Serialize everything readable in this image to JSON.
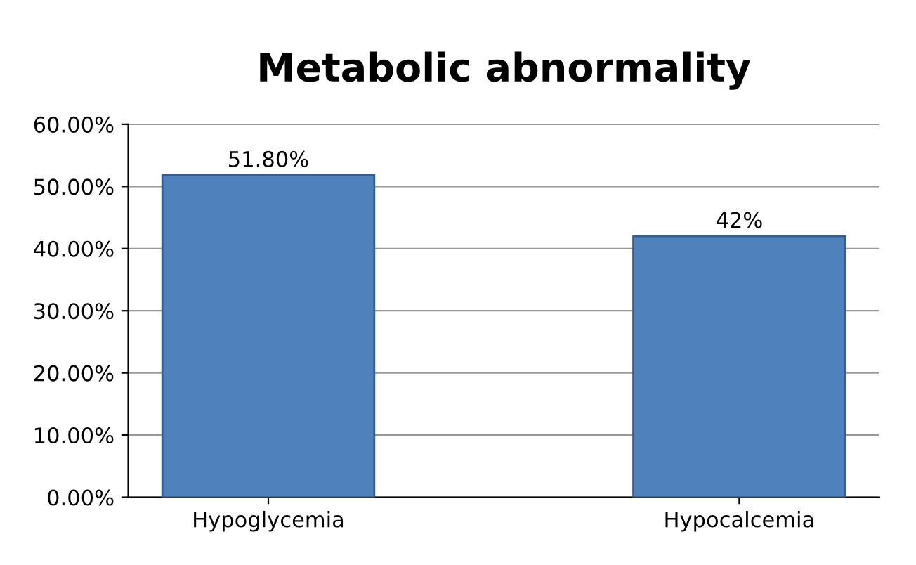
{
  "chart_data": {
    "type": "bar",
    "title": "Metabolic abnormality",
    "categories": [
      "Hypoglycemia",
      "Hypocalcemia"
    ],
    "values": [
      51.8,
      42
    ],
    "color": "#4f81bd",
    "value_labels": [
      "51.80%",
      "42%"
    ],
    "ylim": [
      0,
      60
    ],
    "yticks": [
      {
        "value": 0,
        "label": "0.00%"
      },
      {
        "value": 10,
        "label": "10.00%"
      },
      {
        "value": 20,
        "label": "20.00%"
      },
      {
        "value": 30,
        "label": "30.00%"
      },
      {
        "value": 40,
        "label": "40.00%"
      },
      {
        "value": 50,
        "label": "50.00%"
      },
      {
        "value": 60,
        "label": "60.00%"
      }
    ],
    "grid": "y"
  }
}
